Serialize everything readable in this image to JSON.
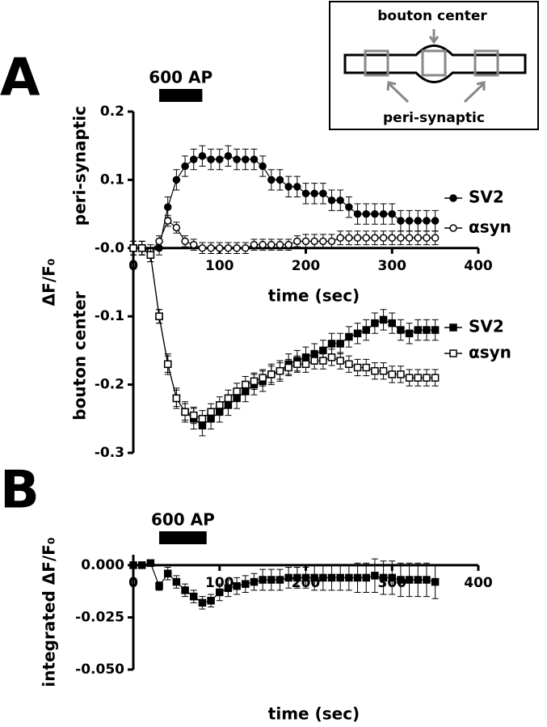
{
  "panel_labels": [
    "A",
    "B"
  ],
  "inset": {
    "top_label": "bouton center",
    "bottom_label": "peri-synaptic"
  },
  "chart_data": [
    {
      "type": "line",
      "x_label": "time (sec)",
      "y_label": "ΔF/F₀",
      "y_region_labels": [
        "peri-synaptic",
        "bouton center"
      ],
      "stimulus": {
        "label": "600 AP",
        "start": 30,
        "end": 80
      },
      "xlim": [
        0,
        400
      ],
      "xticks": [
        0,
        100,
        200,
        300,
        400
      ],
      "ylim": [
        -0.3,
        0.2
      ],
      "yticks": [
        0.2,
        0.1,
        {
          "value": 0,
          "label": "-0.0"
        },
        -0.1,
        -0.2,
        -0.3
      ],
      "x": [
        0,
        10,
        20,
        30,
        40,
        50,
        60,
        70,
        80,
        90,
        100,
        110,
        120,
        130,
        140,
        150,
        160,
        170,
        180,
        190,
        200,
        210,
        220,
        230,
        240,
        250,
        260,
        270,
        280,
        290,
        300,
        310,
        320,
        330,
        340,
        350
      ],
      "series": [
        {
          "name": "SV2",
          "color": "#000000",
          "marker": "filled-circle",
          "values": [
            0,
            0,
            -0.005,
            0,
            0.06,
            0.1,
            0.12,
            0.13,
            0.135,
            0.13,
            0.13,
            0.135,
            0.13,
            0.13,
            0.13,
            0.12,
            0.1,
            0.1,
            0.09,
            0.09,
            0.08,
            0.08,
            0.08,
            0.07,
            0.07,
            0.06,
            0.05,
            0.05,
            0.05,
            0.05,
            0.05,
            0.04,
            0.04,
            0.04,
            0.04,
            0.04
          ],
          "errors": [
            0.01,
            0.01,
            0.01,
            0.01,
            0.015,
            0.015,
            0.015,
            0.015,
            0.015,
            0.015,
            0.015,
            0.015,
            0.015,
            0.015,
            0.015,
            0.015,
            0.015,
            0.015,
            0.015,
            0.015,
            0.015,
            0.015,
            0.015,
            0.015,
            0.015,
            0.015,
            0.015,
            0.015,
            0.015,
            0.015,
            0.015,
            0.015,
            0.015,
            0.015,
            0.015,
            0.015
          ]
        },
        {
          "name": "αsyn",
          "color": "#000000",
          "marker": "open-circle",
          "values": [
            0,
            0,
            -0.005,
            0.01,
            0.04,
            0.03,
            0.01,
            0.005,
            0,
            0,
            0,
            0,
            0,
            0,
            0.005,
            0.005,
            0.005,
            0.005,
            0.005,
            0.01,
            0.01,
            0.01,
            0.01,
            0.01,
            0.015,
            0.015,
            0.015,
            0.015,
            0.015,
            0.015,
            0.015,
            0.015,
            0.015,
            0.015,
            0.015,
            0.015
          ],
          "errors": [
            0.005,
            0.005,
            0.005,
            0.008,
            0.008,
            0.008,
            0.008,
            0.008,
            0.008,
            0.008,
            0.008,
            0.008,
            0.008,
            0.008,
            0.008,
            0.008,
            0.008,
            0.008,
            0.008,
            0.008,
            0.01,
            0.01,
            0.01,
            0.01,
            0.01,
            0.01,
            0.01,
            0.01,
            0.01,
            0.01,
            0.01,
            0.01,
            0.01,
            0.01,
            0.01,
            0.01
          ]
        },
        {
          "name": "SV2",
          "color": "#000000",
          "marker": "filled-square",
          "values": [
            0,
            0,
            -0.01,
            -0.1,
            -0.17,
            -0.22,
            -0.24,
            -0.25,
            -0.26,
            -0.25,
            -0.24,
            -0.23,
            -0.22,
            -0.21,
            -0.2,
            -0.195,
            -0.185,
            -0.18,
            -0.17,
            -0.165,
            -0.16,
            -0.155,
            -0.15,
            -0.14,
            -0.14,
            -0.13,
            -0.125,
            -0.12,
            -0.11,
            -0.105,
            -0.11,
            -0.12,
            -0.125,
            -0.12,
            -0.12,
            -0.12
          ],
          "errors": [
            0.01,
            0.01,
            0.01,
            0.01,
            0.015,
            0.015,
            0.015,
            0.015,
            0.015,
            0.015,
            0.015,
            0.015,
            0.015,
            0.015,
            0.015,
            0.015,
            0.015,
            0.015,
            0.015,
            0.015,
            0.015,
            0.015,
            0.015,
            0.015,
            0.015,
            0.015,
            0.015,
            0.015,
            0.015,
            0.015,
            0.015,
            0.015,
            0.015,
            0.015,
            0.015,
            0.015
          ]
        },
        {
          "name": "αsyn",
          "color": "#000000",
          "marker": "open-square",
          "values": [
            0,
            0,
            -0.01,
            -0.1,
            -0.17,
            -0.22,
            -0.24,
            -0.245,
            -0.25,
            -0.24,
            -0.23,
            -0.22,
            -0.21,
            -0.2,
            -0.195,
            -0.19,
            -0.185,
            -0.18,
            -0.175,
            -0.17,
            -0.17,
            -0.165,
            -0.165,
            -0.16,
            -0.165,
            -0.17,
            -0.175,
            -0.175,
            -0.18,
            -0.18,
            -0.185,
            -0.185,
            -0.19,
            -0.19,
            -0.19,
            -0.19
          ],
          "errors": [
            0.01,
            0.01,
            0.01,
            0.01,
            0.012,
            0.012,
            0.012,
            0.012,
            0.012,
            0.012,
            0.012,
            0.012,
            0.012,
            0.012,
            0.012,
            0.012,
            0.012,
            0.012,
            0.012,
            0.012,
            0.012,
            0.012,
            0.012,
            0.012,
            0.012,
            0.012,
            0.012,
            0.012,
            0.012,
            0.012,
            0.012,
            0.012,
            0.012,
            0.012,
            0.012,
            0.012
          ]
        }
      ]
    },
    {
      "type": "line",
      "x_label": "time (sec)",
      "y_label": "integrated ΔF/F₀",
      "stimulus": {
        "label": "600 AP",
        "start": 30,
        "end": 85
      },
      "xlim": [
        0,
        400
      ],
      "xticks": [
        0,
        100,
        200,
        300,
        400
      ],
      "ylim": [
        -0.05,
        0.005
      ],
      "yticks": [
        {
          "value": 0,
          "label": "0.000"
        },
        {
          "value": -0.025,
          "label": "-0.025"
        },
        {
          "value": -0.05,
          "label": "-0.050"
        }
      ],
      "x": [
        0,
        10,
        20,
        30,
        40,
        50,
        60,
        70,
        80,
        90,
        100,
        110,
        120,
        130,
        140,
        150,
        160,
        170,
        180,
        190,
        200,
        210,
        220,
        230,
        240,
        250,
        260,
        270,
        280,
        290,
        300,
        310,
        320,
        330,
        340,
        350
      ],
      "series": [
        {
          "name": "integrated",
          "color": "#000000",
          "marker": "filled-square",
          "values": [
            0,
            0,
            0.001,
            -0.01,
            -0.004,
            -0.008,
            -0.012,
            -0.015,
            -0.018,
            -0.017,
            -0.013,
            -0.011,
            -0.01,
            -0.009,
            -0.008,
            -0.007,
            -0.007,
            -0.007,
            -0.006,
            -0.006,
            -0.006,
            -0.006,
            -0.006,
            -0.006,
            -0.006,
            -0.006,
            -0.006,
            -0.006,
            -0.005,
            -0.006,
            -0.006,
            -0.007,
            -0.007,
            -0.007,
            -0.007,
            -0.008
          ],
          "errors": [
            0.001,
            0.001,
            0.001,
            0.002,
            0.003,
            0.003,
            0.003,
            0.003,
            0.003,
            0.003,
            0.004,
            0.004,
            0.004,
            0.004,
            0.004,
            0.005,
            0.005,
            0.005,
            0.005,
            0.005,
            0.005,
            0.006,
            0.006,
            0.006,
            0.006,
            0.006,
            0.007,
            0.007,
            0.008,
            0.008,
            0.008,
            0.008,
            0.008,
            0.008,
            0.008,
            0.008
          ]
        }
      ]
    }
  ]
}
